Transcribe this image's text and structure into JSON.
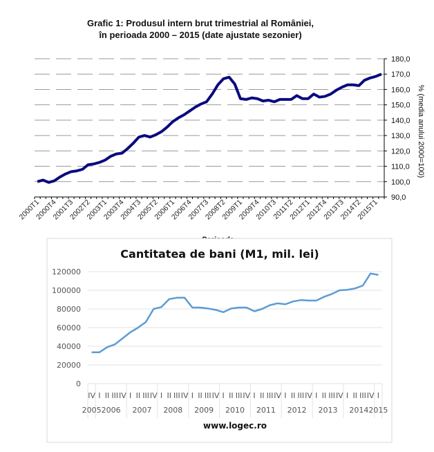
{
  "chart_data": [
    {
      "type": "line",
      "title": "Grafic 1: Produsul intern brut trimestrial al României,",
      "subtitle": "în perioada 2000 – 2015 (date ajustate sezonier)",
      "xlabel": "Perioada",
      "ylabel": "% (media anului 2000=100)",
      "ylim": [
        90,
        180
      ],
      "yticks": [
        "90,0",
        "100,0",
        "110,0",
        "120,0",
        "130,0",
        "140,0",
        "150,0",
        "160,0",
        "170,0",
        "180,0"
      ],
      "grid": true,
      "line_color": "#0a0a80",
      "x_tick_labels": [
        "2000T1",
        "2000T4",
        "2001T3",
        "2002T2",
        "2003T1",
        "2003T4",
        "2004T3",
        "2005T2",
        "2006T1",
        "2006T4",
        "2007T3",
        "2008T2",
        "2009T1",
        "2009T4",
        "2010T3",
        "2011T2",
        "2012T1",
        "2012T4",
        "2013T3",
        "2014T2",
        "2015T1"
      ],
      "values": [
        100,
        101,
        99.5,
        100.5,
        103,
        105,
        106.5,
        107,
        108,
        111,
        111.5,
        112.5,
        114,
        116.5,
        118,
        118.5,
        121.5,
        125,
        129,
        130,
        129,
        130.5,
        132.5,
        135.5,
        139,
        141.5,
        143.5,
        146,
        148.5,
        150.5,
        152,
        157,
        163,
        167,
        168,
        163.5,
        154,
        153.5,
        154.5,
        154,
        152.5,
        153,
        152,
        153.5,
        153.5,
        153.5,
        156,
        154,
        154,
        157,
        155,
        155.5,
        157,
        159.5,
        161.5,
        163,
        163,
        162.5,
        166,
        167.5,
        168.5,
        170
      ]
    },
    {
      "type": "line",
      "title": "Cantitatea de bani (M1, mil. lei)",
      "source": "www.logec.ro",
      "ylim": [
        0,
        120000
      ],
      "yticks": [
        "0",
        "20000",
        "40000",
        "60000",
        "80000",
        "100000",
        "120000"
      ],
      "grid": true,
      "line_color": "#5b9bd5",
      "quarter_labels": [
        "IV",
        "I",
        "II",
        "III",
        "IV",
        "I",
        "II",
        "III",
        "IV",
        "I",
        "II",
        "III",
        "IV",
        "I",
        "II",
        "III",
        "IV",
        "I",
        "II",
        "III",
        "IV",
        "I",
        "II",
        "III",
        "IV",
        "I",
        "II",
        "III",
        "IV",
        "I",
        "II",
        "III",
        "IV",
        "I",
        "II",
        "III",
        "IV",
        "I"
      ],
      "years": [
        {
          "label": "2005",
          "quarters": 1
        },
        {
          "label": "2006",
          "quarters": 4
        },
        {
          "label": "2007",
          "quarters": 4
        },
        {
          "label": "2008",
          "quarters": 4
        },
        {
          "label": "2009",
          "quarters": 4
        },
        {
          "label": "2010",
          "quarters": 4
        },
        {
          "label": "2011",
          "quarters": 4
        },
        {
          "label": "2012",
          "quarters": 4
        },
        {
          "label": "2013",
          "quarters": 4
        },
        {
          "label": "2014",
          "quarters": 4
        },
        {
          "label": "2015",
          "quarters": 1
        }
      ],
      "values": [
        33500,
        33500,
        39000,
        42000,
        48500,
        55000,
        60000,
        66000,
        80000,
        82000,
        90500,
        92000,
        92000,
        81500,
        81500,
        80500,
        79000,
        76500,
        80500,
        81500,
        81500,
        77500,
        80000,
        84000,
        86000,
        85000,
        88000,
        89500,
        89000,
        89000,
        93000,
        96000,
        100000,
        100500,
        102000,
        105000,
        118000,
        116500
      ]
    }
  ]
}
